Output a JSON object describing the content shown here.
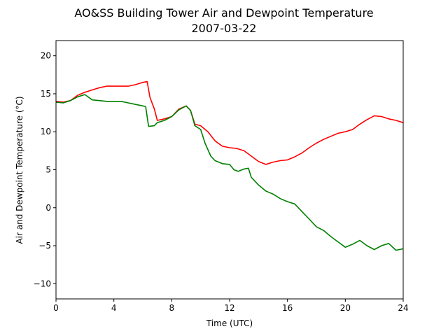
{
  "chart_data": {
    "type": "line",
    "title": "AO&SS Building Tower Air and Dewpoint Temperature",
    "subtitle": "2007-03-22",
    "xlabel": "Time (UTC)",
    "ylabel": "Air and Dewpoint Temperature (°C)",
    "xlim": [
      0,
      24
    ],
    "ylim": [
      -12,
      22
    ],
    "xticks": [
      0,
      4,
      8,
      12,
      16,
      20,
      24
    ],
    "yticks": [
      -10,
      -5,
      0,
      5,
      10,
      15,
      20
    ],
    "grid": false,
    "series": [
      {
        "color": "#ff0000",
        "points": [
          [
            0,
            14.0
          ],
          [
            0.5,
            13.9
          ],
          [
            1.0,
            14.1
          ],
          [
            1.5,
            14.8
          ],
          [
            2.0,
            15.2
          ],
          [
            2.5,
            15.5
          ],
          [
            3.0,
            15.8
          ],
          [
            3.5,
            16.0
          ],
          [
            4.0,
            16.0
          ],
          [
            4.5,
            16.0
          ],
          [
            5.0,
            16.0
          ],
          [
            5.5,
            16.2
          ],
          [
            6.0,
            16.5
          ],
          [
            6.3,
            16.6
          ],
          [
            6.5,
            14.5
          ],
          [
            6.8,
            13.0
          ],
          [
            7.0,
            11.5
          ],
          [
            7.5,
            11.7
          ],
          [
            8.0,
            12.0
          ],
          [
            8.5,
            13.0
          ],
          [
            9.0,
            13.4
          ],
          [
            9.3,
            12.8
          ],
          [
            9.6,
            11.0
          ],
          [
            10.0,
            10.8
          ],
          [
            10.5,
            10.0
          ],
          [
            11.0,
            8.8
          ],
          [
            11.5,
            8.1
          ],
          [
            12.0,
            7.9
          ],
          [
            12.5,
            7.8
          ],
          [
            13.0,
            7.5
          ],
          [
            13.5,
            6.8
          ],
          [
            14.0,
            6.1
          ],
          [
            14.5,
            5.7
          ],
          [
            15.0,
            6.0
          ],
          [
            15.5,
            6.2
          ],
          [
            16.0,
            6.3
          ],
          [
            16.5,
            6.7
          ],
          [
            17.0,
            7.2
          ],
          [
            17.5,
            7.9
          ],
          [
            18.0,
            8.5
          ],
          [
            18.5,
            9.0
          ],
          [
            19.0,
            9.4
          ],
          [
            19.5,
            9.8
          ],
          [
            20.0,
            10.0
          ],
          [
            20.5,
            10.3
          ],
          [
            21.0,
            11.0
          ],
          [
            21.5,
            11.6
          ],
          [
            22.0,
            12.1
          ],
          [
            22.5,
            12.0
          ],
          [
            23.0,
            11.7
          ],
          [
            23.5,
            11.5
          ],
          [
            24.0,
            11.2
          ]
        ]
      },
      {
        "color": "#008000",
        "points": [
          [
            0,
            13.9
          ],
          [
            0.5,
            13.8
          ],
          [
            1.0,
            14.1
          ],
          [
            1.5,
            14.6
          ],
          [
            2.0,
            14.9
          ],
          [
            2.5,
            14.2
          ],
          [
            3.0,
            14.1
          ],
          [
            3.5,
            14.0
          ],
          [
            4.0,
            14.0
          ],
          [
            4.5,
            14.0
          ],
          [
            5.0,
            13.8
          ],
          [
            5.5,
            13.6
          ],
          [
            6.0,
            13.4
          ],
          [
            6.2,
            13.3
          ],
          [
            6.4,
            10.7
          ],
          [
            6.8,
            10.8
          ],
          [
            7.0,
            11.2
          ],
          [
            7.5,
            11.5
          ],
          [
            8.0,
            12.0
          ],
          [
            8.5,
            12.9
          ],
          [
            9.0,
            13.4
          ],
          [
            9.3,
            12.8
          ],
          [
            9.6,
            10.8
          ],
          [
            10.0,
            10.3
          ],
          [
            10.3,
            8.5
          ],
          [
            10.7,
            6.8
          ],
          [
            11.0,
            6.2
          ],
          [
            11.5,
            5.8
          ],
          [
            12.0,
            5.7
          ],
          [
            12.3,
            5.0
          ],
          [
            12.6,
            4.8
          ],
          [
            13.0,
            5.1
          ],
          [
            13.3,
            5.2
          ],
          [
            13.5,
            4.0
          ],
          [
            14.0,
            3.0
          ],
          [
            14.5,
            2.2
          ],
          [
            15.0,
            1.8
          ],
          [
            15.5,
            1.2
          ],
          [
            16.0,
            0.8
          ],
          [
            16.5,
            0.5
          ],
          [
            17.0,
            -0.5
          ],
          [
            17.5,
            -1.5
          ],
          [
            18.0,
            -2.5
          ],
          [
            18.5,
            -3.0
          ],
          [
            19.0,
            -3.8
          ],
          [
            19.5,
            -4.5
          ],
          [
            20.0,
            -5.2
          ],
          [
            20.5,
            -4.8
          ],
          [
            21.0,
            -4.3
          ],
          [
            21.5,
            -5.0
          ],
          [
            22.0,
            -5.5
          ],
          [
            22.5,
            -5.0
          ],
          [
            23.0,
            -4.7
          ],
          [
            23.5,
            -5.6
          ],
          [
            24.0,
            -5.4
          ]
        ]
      }
    ]
  }
}
